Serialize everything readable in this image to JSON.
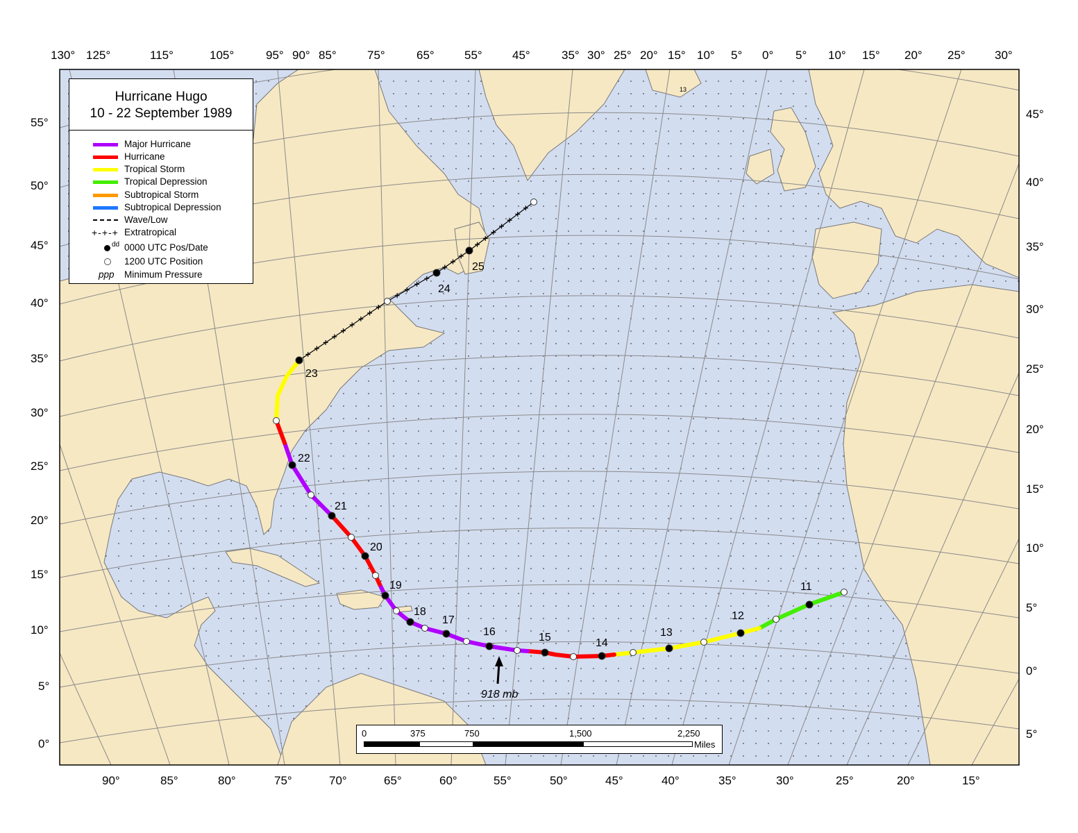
{
  "title_line1": "Hurricane Hugo",
  "title_line2": "10 - 22 September 1989",
  "legend": [
    {
      "label": "Major Hurricane",
      "color": "#b000ff",
      "style": "line"
    },
    {
      "label": "Hurricane",
      "color": "#ff0000",
      "style": "line"
    },
    {
      "label": "Tropical Storm",
      "color": "#ffff00",
      "style": "line"
    },
    {
      "label": "Tropical Depression",
      "color": "#44ee00",
      "style": "line"
    },
    {
      "label": "Subtropical Storm",
      "color": "#ff9900",
      "style": "line"
    },
    {
      "label": "Subtropical Depression",
      "color": "#1e78ff",
      "style": "line"
    },
    {
      "label": "Wave/Low",
      "color": "#000000",
      "style": "dash"
    },
    {
      "label": "Extratropical",
      "color": "#000000",
      "style": "plus"
    },
    {
      "label": "0000 UTC Pos/Date",
      "symbol_text": "dd",
      "style": "black-dot"
    },
    {
      "label": "1200 UTC Position",
      "style": "white-dot"
    },
    {
      "label": "Minimum Pressure",
      "symbol_text": "ppp",
      "style": "italic"
    }
  ],
  "top_longitudes": [
    "130°",
    "125°",
    "115°",
    "105°",
    "95°",
    "90°",
    "85°",
    "75°",
    "65°",
    "55°",
    "45°",
    "35°",
    "30°",
    "25°",
    "20°",
    "15°",
    "10°",
    "5°",
    "0°",
    "5°",
    "10°",
    "15°",
    "20°",
    "25°",
    "30°"
  ],
  "bottom_longitudes": [
    "90°",
    "85°",
    "80°",
    "75°",
    "70°",
    "65°",
    "60°",
    "55°",
    "50°",
    "45°",
    "40°",
    "35°",
    "30°",
    "25°",
    "20°",
    "15°"
  ],
  "left_latitudes": [
    "55°",
    "50°",
    "45°",
    "40°",
    "35°",
    "30°",
    "25°",
    "20°",
    "15°",
    "10°",
    "5°",
    "0°"
  ],
  "right_latitudes": [
    "45°",
    "40°",
    "35°",
    "30°",
    "25°",
    "20°",
    "15°",
    "10°",
    "5°",
    "0°",
    "5°"
  ],
  "date_labels": [
    "11",
    "12",
    "13",
    "14",
    "15",
    "16",
    "17",
    "18",
    "19",
    "20",
    "21",
    "22",
    "23",
    "24",
    "25"
  ],
  "min_pressure": "918 mb",
  "greenland_note": "13",
  "scale": {
    "ticks": [
      "0",
      "375",
      "750",
      "1,500",
      "2,250"
    ],
    "unit": "Miles"
  },
  "colors": {
    "ocean": "#d3ddf0",
    "land": "#f6e8c3",
    "major": "#b000ff",
    "hurricane": "#ff0000",
    "tropical_storm": "#ffff00",
    "tropical_depression": "#44ee00",
    "grid": "#8a8a8a"
  }
}
